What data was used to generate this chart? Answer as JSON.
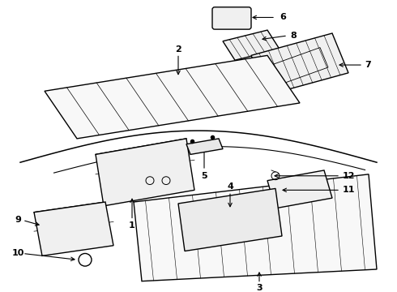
{
  "bg_color": "#ffffff",
  "line_color": "#000000",
  "lw": 1.0,
  "label_fontsize": 8,
  "label_fontweight": "bold",
  "fig_w": 4.9,
  "fig_h": 3.6,
  "dpi": 100
}
